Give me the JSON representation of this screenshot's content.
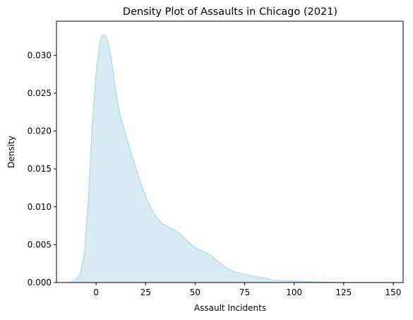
{
  "chart_data": {
    "type": "area",
    "title": "Density Plot of Assaults in Chicago (2021)",
    "xlabel": "Assault Incidents",
    "ylabel": "Density",
    "xlim": [
      -20,
      155
    ],
    "ylim": [
      0,
      0.0345
    ],
    "xticks": [
      0,
      25,
      50,
      75,
      100,
      125,
      150
    ],
    "xtick_labels": [
      "0",
      "25",
      "50",
      "75",
      "100",
      "125",
      "150"
    ],
    "yticks": [
      0.0,
      0.005,
      0.01,
      0.015,
      0.02,
      0.025,
      0.03
    ],
    "ytick_labels": [
      "0.000",
      "0.005",
      "0.010",
      "0.015",
      "0.020",
      "0.025",
      "0.030"
    ],
    "grid": false,
    "fill_color": "#add8e6",
    "fill_opacity": 0.5,
    "line_color": "#add8e6",
    "series": [
      {
        "x": [
          -15,
          -12,
          -10,
          -8,
          -6,
          -4,
          -2,
          0,
          2,
          3,
          4,
          5,
          6,
          8,
          10,
          12,
          15,
          18,
          20,
          22,
          25,
          28,
          30,
          33,
          36,
          40,
          43,
          46,
          50,
          54,
          58,
          62,
          66,
          70,
          75,
          80,
          85,
          90,
          95,
          100,
          105,
          110,
          115,
          120,
          125,
          130,
          135,
          140,
          145,
          150,
          153
        ],
        "y": [
          0.0,
          0.0001,
          0.0004,
          0.0012,
          0.0038,
          0.0105,
          0.0205,
          0.0278,
          0.0318,
          0.0326,
          0.0327,
          0.0325,
          0.0318,
          0.029,
          0.0252,
          0.0222,
          0.0195,
          0.0168,
          0.0152,
          0.0135,
          0.0114,
          0.0097,
          0.0088,
          0.0079,
          0.0074,
          0.0069,
          0.0063,
          0.0055,
          0.0046,
          0.0041,
          0.0036,
          0.0027,
          0.0019,
          0.0014,
          0.0011,
          0.0008,
          0.0006,
          0.0003,
          0.00025,
          0.0002,
          0.00015,
          0.0001,
          6e-05,
          4e-05,
          3e-05,
          2e-05,
          1e-05,
          1e-05,
          1e-05,
          5e-06,
          0.0
        ]
      }
    ]
  }
}
